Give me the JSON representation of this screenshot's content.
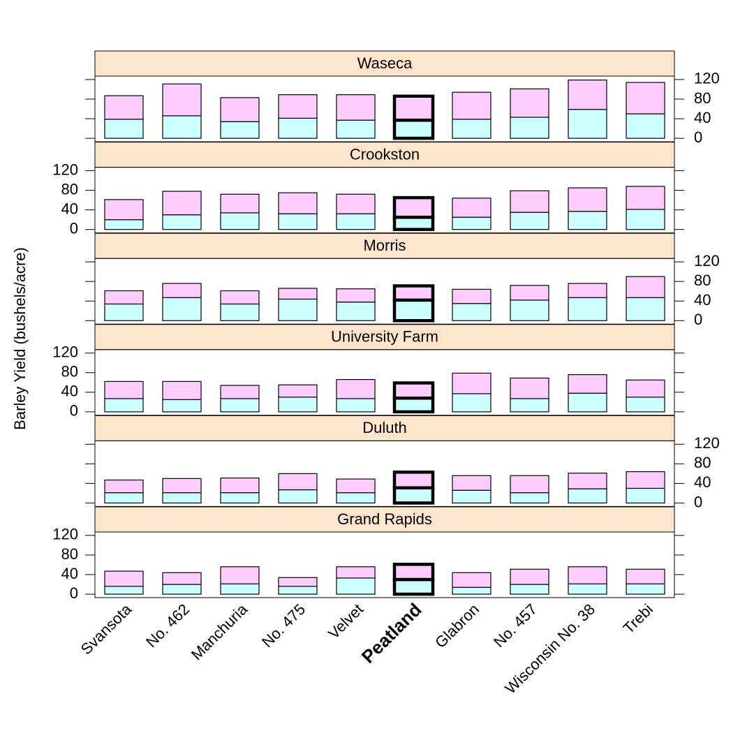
{
  "chart_data": {
    "type": "bar",
    "ylabel": "Barley Yield (bushels/acre)",
    "categories": [
      "Svansota",
      "No. 462",
      "Manchuria",
      "No. 475",
      "Velvet",
      "Peatland",
      "Glabron",
      "No. 457",
      "Wisconsin No. 38",
      "Trebi"
    ],
    "highlight_index": 5,
    "ylim": [
      -7,
      127
    ],
    "yticks": [
      0,
      40,
      80,
      120
    ],
    "panels": [
      {
        "title": "Waseca",
        "series": [
          {
            "color": "#ccffff",
            "values": [
              39,
              46,
              34,
              41,
              37,
              37,
              39,
              43,
              59,
              50
            ]
          },
          {
            "color": "#ffccff",
            "values": [
              48,
              65,
              49,
              48,
              52,
              49,
              55,
              58,
              60,
              64
            ]
          }
        ]
      },
      {
        "title": "Crookston",
        "series": [
          {
            "color": "#ccffff",
            "values": [
              20,
              30,
              34,
              32,
              32,
              25,
              25,
              35,
              37,
              41
            ]
          },
          {
            "color": "#ffccff",
            "values": [
              41,
              48,
              38,
              43,
              40,
              40,
              39,
              44,
              48,
              47
            ]
          }
        ]
      },
      {
        "title": "Morris",
        "series": [
          {
            "color": "#ccffff",
            "values": [
              34,
              47,
              34,
              44,
              38,
              42,
              35,
              42,
              47,
              47
            ]
          },
          {
            "color": "#ffccff",
            "values": [
              27,
              29,
              27,
              22,
              27,
              29,
              29,
              30,
              29,
              43
            ]
          }
        ]
      },
      {
        "title": "University Farm",
        "series": [
          {
            "color": "#ccffff",
            "values": [
              27,
              25,
              27,
              30,
              27,
              28,
              37,
              27,
              38,
              30
            ]
          },
          {
            "color": "#ffccff",
            "values": [
              35,
              37,
              27,
              25,
              39,
              31,
              42,
              42,
              38,
              35
            ]
          }
        ]
      },
      {
        "title": "Duluth",
        "series": [
          {
            "color": "#ccffff",
            "values": [
              21,
              21,
              21,
              27,
              21,
              31,
              26,
              21,
              29,
              30
            ]
          },
          {
            "color": "#ffccff",
            "values": [
              26,
              29,
              30,
              33,
              28,
              32,
              30,
              35,
              32,
              34
            ]
          }
        ]
      },
      {
        "title": "Grand Rapids",
        "series": [
          {
            "color": "#ccffff",
            "values": [
              16,
              20,
              21,
              16,
              33,
              30,
              14,
              20,
              21,
              21
            ]
          },
          {
            "color": "#ffccff",
            "values": [
              31,
              24,
              35,
              18,
              23,
              31,
              30,
              31,
              35,
              30
            ]
          }
        ]
      }
    ]
  }
}
